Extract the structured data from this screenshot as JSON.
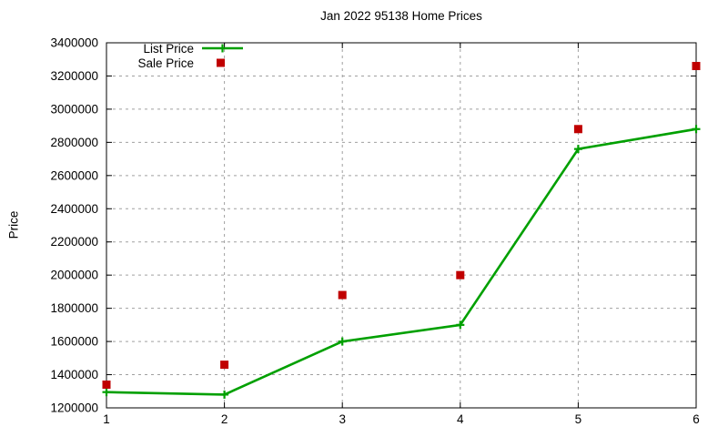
{
  "chart_data": {
    "type": "line",
    "title": "Jan 2022 95138 Home Prices",
    "xlabel": "",
    "ylabel": "Price",
    "x": [
      1,
      2,
      3,
      4,
      5,
      6
    ],
    "xlim": [
      1,
      6
    ],
    "ylim": [
      1200000,
      3400000
    ],
    "xticks": [
      1,
      2,
      3,
      4,
      5,
      6
    ],
    "yticks": [
      1200000,
      1400000,
      1600000,
      1800000,
      2000000,
      2200000,
      2400000,
      2600000,
      2800000,
      3000000,
      3200000,
      3400000
    ],
    "grid": true,
    "legend_position": "top-left-inside",
    "series": [
      {
        "name": "List Price",
        "type": "line",
        "marker": "plus",
        "color": "#00a000",
        "values": [
          1295000,
          1280000,
          1600000,
          1700000,
          2760000,
          2880000
        ]
      },
      {
        "name": "Sale Price",
        "type": "scatter",
        "marker": "square",
        "color": "#c00000",
        "values": [
          1340000,
          1460000,
          1880000,
          2000000,
          2880000,
          3260000
        ]
      }
    ],
    "colors": {
      "grid": "#a0a0a0",
      "axis": "#000000",
      "background": "#ffffff"
    }
  }
}
